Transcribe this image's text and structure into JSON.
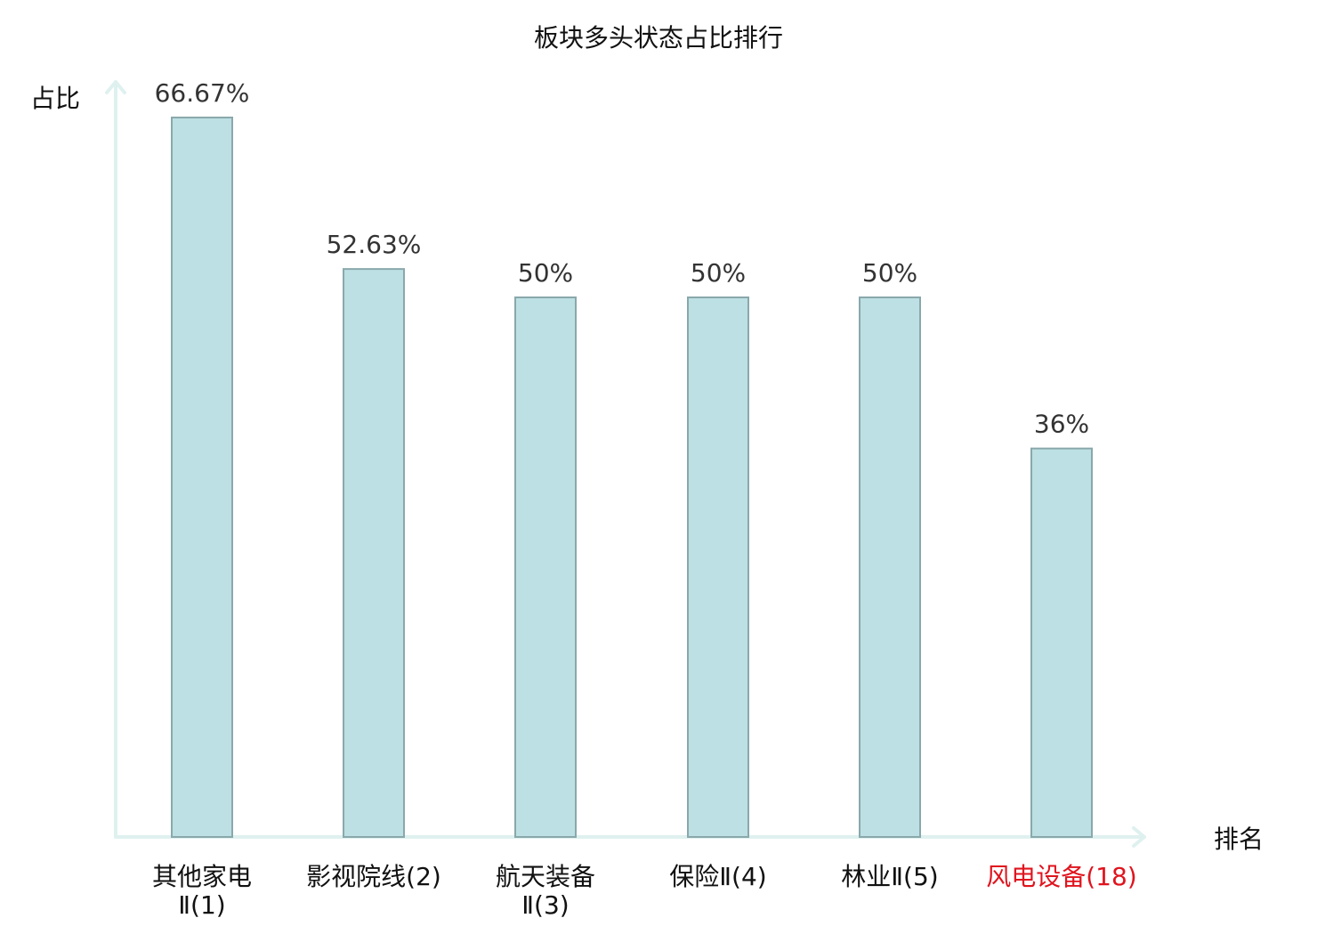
{
  "chart_data": {
    "type": "bar",
    "title": "板块多头状态占比排行",
    "ylabel": "占比",
    "xlabel": "排名",
    "ylim": [
      0,
      70
    ],
    "grid": false,
    "legend": "none",
    "bar_color": "#bce0e3",
    "bar_edge_color": "#8aa8ab",
    "axis_color": "#dff1ef",
    "highlight_color": "#e0141e",
    "categories": [
      {
        "name_lines": [
          "其他家电",
          "Ⅱ(1)"
        ],
        "highlight": false
      },
      {
        "name_lines": [
          "影视院线(2)"
        ],
        "highlight": false
      },
      {
        "name_lines": [
          "航天装备",
          "Ⅱ(3)"
        ],
        "highlight": false
      },
      {
        "name_lines": [
          "保险Ⅱ(4)"
        ],
        "highlight": false
      },
      {
        "name_lines": [
          "林业Ⅱ(5)"
        ],
        "highlight": false
      },
      {
        "name_lines": [
          "风电设备(18)"
        ],
        "highlight": true
      }
    ],
    "values": [
      66.67,
      52.63,
      50,
      50,
      50,
      36
    ],
    "value_labels": [
      "66.67%",
      "52.63%",
      "50%",
      "50%",
      "50%",
      "36%"
    ]
  }
}
